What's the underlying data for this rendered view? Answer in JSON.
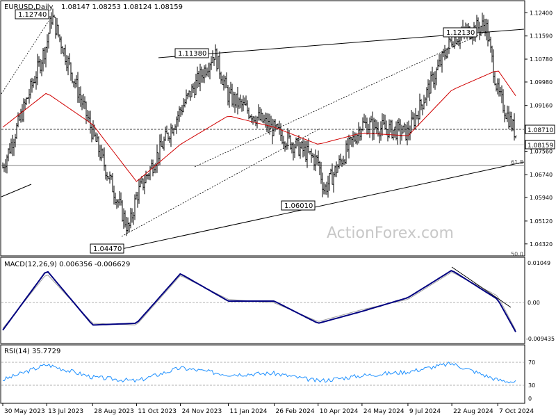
{
  "header": {
    "symbol": "EURUSD,Daily",
    "ohlc": "1.08147 1.08253 1.08124 1.08159"
  },
  "watermark": "ActionForex.com",
  "chart_data": [
    {
      "type": "candlestick",
      "title": "EURUSD,Daily",
      "ylim": [
        1.0395,
        1.1275
      ],
      "y_ticks": [
        "1.12400",
        "1.11590",
        "1.10780",
        "1.09980",
        "1.09160",
        "1.08360",
        "1.07560",
        "1.06740",
        "1.05940",
        "1.05120",
        "1.04320"
      ],
      "x_ticks": [
        "30 May 2023",
        "13 Jul 2023",
        "28 Aug 2023",
        "11 Oct 2023",
        "24 Nov 2023",
        "11 Jan 2024",
        "26 Feb 2024",
        "10 Apr 2024",
        "24 May 2024",
        "9 Jul 2024",
        "22 Aug 2024",
        "7 Oct 2024"
      ],
      "price_labels": [
        {
          "text": "1.12740",
          "value": 1.1274,
          "date": "18 Jul 2023"
        },
        {
          "text": "1.11380",
          "value": 1.1138,
          "date": "28 Dec 2023"
        },
        {
          "text": "1.04470",
          "value": 1.0447,
          "date": "3 Oct 2023"
        },
        {
          "text": "1.06010",
          "value": 1.0601,
          "date": "16 Apr 2024"
        },
        {
          "text": "1.12130",
          "value": 1.1213,
          "date": "25 Sep 2024"
        }
      ],
      "current_price_label": "1.08159",
      "reference_price_label": "1.08710",
      "fib_label": "61.8",
      "fib_label_bottom": "50.0",
      "close_series": {
        "dates": [
          "30 May 2023",
          "13 Jul 2023",
          "18 Jul 2023",
          "28 Aug 2023",
          "3 Oct 2023",
          "11 Oct 2023",
          "24 Nov 2023",
          "28 Dec 2023",
          "11 Jan 2024",
          "26 Feb 2024",
          "10 Apr 2024",
          "16 Apr 2024",
          "24 May 2024",
          "9 Jul 2024",
          "22 Aug 2024",
          "25 Sep 2024",
          "7 Oct 2024",
          "25 Oct 2024"
        ],
        "values": [
          1.07,
          1.113,
          1.123,
          1.082,
          1.048,
          1.06,
          1.09,
          1.11,
          1.095,
          1.083,
          1.072,
          1.062,
          1.085,
          1.082,
          1.115,
          1.12,
          1.096,
          1.0816
        ]
      },
      "ma_series": {
        "dates": [
          "30 May 2023",
          "13 Jul 2023",
          "28 Aug 2023",
          "11 Oct 2023",
          "24 Nov 2023",
          "11 Jan 2024",
          "26 Feb 2024",
          "10 Apr 2024",
          "24 May 2024",
          "9 Jul 2024",
          "22 Aug 2024",
          "7 Oct 2024",
          "25 Oct 2024"
        ],
        "values": [
          1.084,
          1.096,
          1.085,
          1.065,
          1.078,
          1.088,
          1.084,
          1.078,
          1.082,
          1.081,
          1.097,
          1.104,
          1.095
        ]
      }
    },
    {
      "type": "line",
      "title": "MACD(12,26,9) 0.006356 -0.006629",
      "ylim": [
        -0.0115,
        0.0125
      ],
      "y_ticks": [
        "0.01049",
        "0.00",
        "-0.009435"
      ],
      "macd": {
        "dates": [
          "30 May 2023",
          "13 Jul 2023",
          "28 Aug 2023",
          "11 Oct 2023",
          "24 Nov 2023",
          "11 Jan 2024",
          "26 Feb 2024",
          "10 Apr 2024",
          "24 May 2024",
          "9 Jul 2024",
          "22 Aug 2024",
          "7 Oct 2024",
          "25 Oct 2024"
        ],
        "values": [
          -0.008,
          0.0095,
          -0.0065,
          -0.006,
          0.0085,
          0.0005,
          0.0005,
          -0.006,
          -0.0025,
          0.0015,
          0.0095,
          0.001,
          -0.0085
        ]
      },
      "signal": {
        "dates": [
          "30 May 2023",
          "13 Jul 2023",
          "28 Aug 2023",
          "11 Oct 2023",
          "24 Nov 2023",
          "11 Jan 2024",
          "26 Feb 2024",
          "10 Apr 2024",
          "24 May 2024",
          "9 Jul 2024",
          "22 Aug 2024",
          "7 Oct 2024",
          "25 Oct 2024"
        ],
        "values": [
          -0.0075,
          0.0085,
          -0.006,
          -0.0065,
          0.008,
          0.001,
          0.0,
          -0.0055,
          -0.002,
          0.001,
          0.009,
          0.002,
          -0.008
        ]
      }
    },
    {
      "type": "line",
      "title": "RSI(14) 35.7729",
      "ylim": [
        0,
        100
      ],
      "y_ticks": [
        "70",
        "30",
        "0"
      ],
      "rsi": {
        "dates": [
          "30 May 2023",
          "13 Jul 2023",
          "28 Aug 2023",
          "11 Oct 2023",
          "24 Nov 2023",
          "11 Jan 2024",
          "26 Feb 2024",
          "10 Apr 2024",
          "24 May 2024",
          "9 Jul 2024",
          "22 Aug 2024",
          "7 Oct 2024",
          "25 Oct 2024"
        ],
        "values": [
          40,
          68,
          45,
          38,
          62,
          50,
          52,
          38,
          48,
          55,
          70,
          40,
          36
        ]
      }
    }
  ]
}
